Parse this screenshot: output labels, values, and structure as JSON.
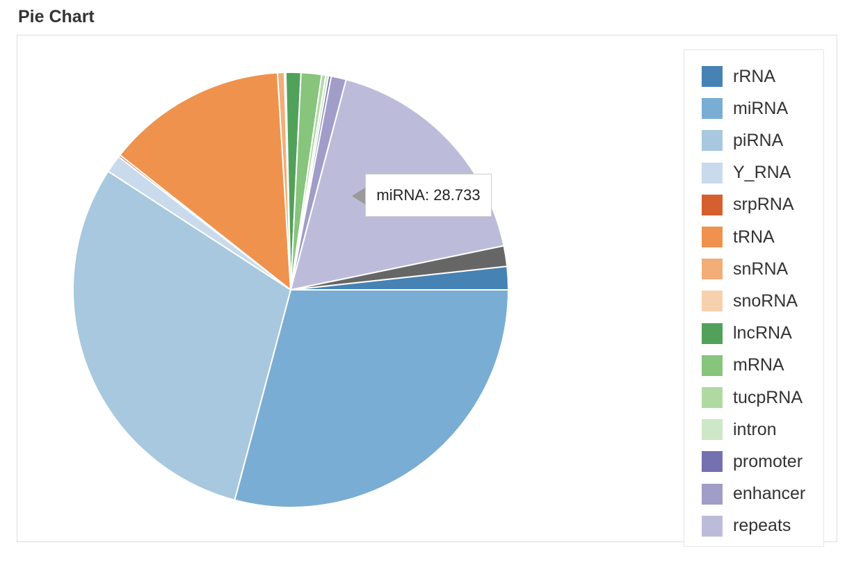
{
  "title": "Pie Chart",
  "tooltip": {
    "label": "miRNA",
    "value": "28.733",
    "text": "miRNA: 28.733"
  },
  "chart_data": {
    "type": "pie",
    "title": "Pie Chart",
    "legend_position": "right",
    "slices": [
      {
        "name": "rRNA",
        "value": 1.7,
        "color": "#4682b4",
        "in_legend": true
      },
      {
        "name": "miRNA",
        "value": 28.733,
        "color": "#7aadd3",
        "in_legend": true
      },
      {
        "name": "piRNA",
        "value": 29.6,
        "color": "#a7c8de",
        "in_legend": true
      },
      {
        "name": "Y_RNA",
        "value": 1.3,
        "color": "#c9daec",
        "in_legend": true
      },
      {
        "name": "srpRNA",
        "value": 0.15,
        "color": "#d65f2f",
        "in_legend": true
      },
      {
        "name": "tRNA",
        "value": 13.2,
        "color": "#ef924e",
        "in_legend": true
      },
      {
        "name": "snRNA",
        "value": 0.5,
        "color": "#f2ad78",
        "in_legend": true
      },
      {
        "name": "snoRNA",
        "value": 0.1,
        "color": "#f7d1ad",
        "in_legend": true
      },
      {
        "name": "lncRNA",
        "value": 1.1,
        "color": "#52a15a",
        "in_legend": true
      },
      {
        "name": "mRNA",
        "value": 1.5,
        "color": "#87c47c",
        "in_legend": true
      },
      {
        "name": "tucpRNA",
        "value": 0.3,
        "color": "#b0d9a2",
        "in_legend": true
      },
      {
        "name": "intron",
        "value": 0.2,
        "color": "#cde8c7",
        "in_legend": true
      },
      {
        "name": "promoter",
        "value": 0.2,
        "color": "#7570b0",
        "in_legend": true
      },
      {
        "name": "enhancer",
        "value": 1.1,
        "color": "#a09dc8",
        "in_legend": true
      },
      {
        "name": "repeats",
        "value": 17.4,
        "color": "#bcbcda",
        "in_legend": true
      },
      {
        "name": "",
        "value": 1.5,
        "color": "#666666",
        "in_legend": false
      }
    ]
  }
}
